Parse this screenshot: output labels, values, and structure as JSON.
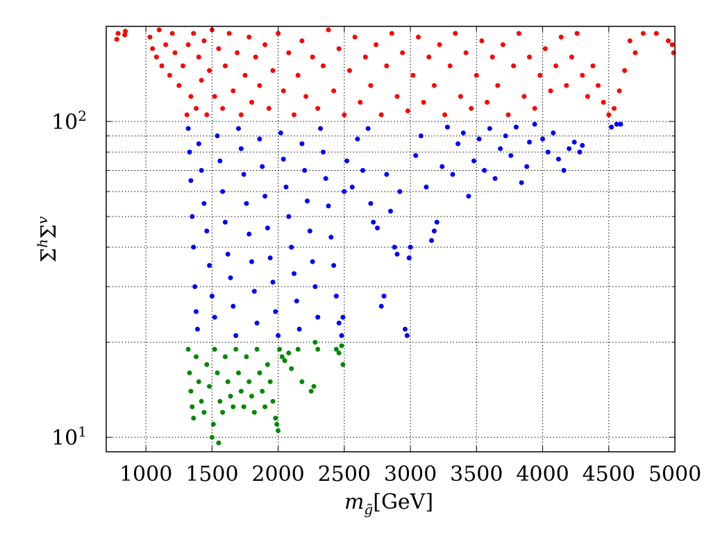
{
  "chart_data": {
    "type": "scatter",
    "xlabel": "m_g̃[GeV]",
    "ylabel": "Σ^h Σ^v",
    "xlim": [
      700,
      5000
    ],
    "ylim": [
      9,
      200
    ],
    "yscale": "log",
    "grid": true,
    "grid_style": "dotted",
    "x_ticks": [
      1000,
      1500,
      2000,
      2500,
      3000,
      3500,
      4000,
      4500,
      5000
    ],
    "x_tick_labels": [
      "1000",
      "1500",
      "2000",
      "2500",
      "3000",
      "3500",
      "4000",
      "4500",
      "5000"
    ],
    "y_major_ticks": [
      10,
      100
    ],
    "y_major_tick_labels": [
      "10",
      "10"
    ],
    "y_major_tick_exponents": [
      "1",
      "2"
    ],
    "y_minor_ticks": [
      20,
      30,
      40,
      50,
      60,
      70,
      80,
      90
    ],
    "series": [
      {
        "color": "#ff0000",
        "y_range": [
          100,
          200
        ],
        "points": [
          [
            780,
            182
          ],
          [
            790,
            190
          ],
          [
            840,
            188
          ],
          [
            845,
            193
          ],
          [
            1030,
            185
          ],
          [
            1050,
            170
          ],
          [
            1080,
            160
          ],
          [
            1100,
            195
          ],
          [
            1120,
            150
          ],
          [
            1150,
            175
          ],
          [
            1180,
            140
          ],
          [
            1200,
            190
          ],
          [
            1220,
            165
          ],
          [
            1250,
            130
          ],
          [
            1280,
            150
          ],
          [
            1310,
            105
          ],
          [
            1320,
            175
          ],
          [
            1340,
            120
          ],
          [
            1360,
            190
          ],
          [
            1380,
            110
          ],
          [
            1400,
            160
          ],
          [
            1420,
            135
          ],
          [
            1440,
            180
          ],
          [
            1460,
            105
          ],
          [
            1480,
            145
          ],
          [
            1500,
            195
          ],
          [
            1520,
            120
          ],
          [
            1550,
            170
          ],
          [
            1580,
            110
          ],
          [
            1600,
            150
          ],
          [
            1630,
            190
          ],
          [
            1660,
            125
          ],
          [
            1690,
            165
          ],
          [
            1720,
            105
          ],
          [
            1750,
            140
          ],
          [
            1780,
            185
          ],
          [
            1800,
            115
          ],
          [
            1830,
            160
          ],
          [
            1860,
            130
          ],
          [
            1900,
            175
          ],
          [
            1930,
            110
          ],
          [
            1960,
            145
          ],
          [
            2000,
            190
          ],
          [
            2040,
            125
          ],
          [
            2080,
            165
          ],
          [
            2120,
            105
          ],
          [
            2150,
            140
          ],
          [
            2180,
            180
          ],
          [
            2210,
            120
          ],
          [
            2260,
            160
          ],
          [
            2300,
            110
          ],
          [
            2340,
            150
          ],
          [
            2380,
            195
          ],
          [
            2420,
            125
          ],
          [
            2460,
            170
          ],
          [
            2500,
            105
          ],
          [
            2540,
            145
          ],
          [
            2580,
            185
          ],
          [
            2620,
            115
          ],
          [
            2660,
            160
          ],
          [
            2700,
            130
          ],
          [
            2740,
            175
          ],
          [
            2780,
            105
          ],
          [
            2820,
            150
          ],
          [
            2860,
            190
          ],
          [
            2900,
            120
          ],
          [
            2940,
            165
          ],
          [
            2980,
            108
          ],
          [
            3020,
            140
          ],
          [
            3060,
            185
          ],
          [
            3100,
            115
          ],
          [
            3140,
            160
          ],
          [
            3180,
            130
          ],
          [
            3220,
            175
          ],
          [
            3260,
            105
          ],
          [
            3300,
            150
          ],
          [
            3340,
            190
          ],
          [
            3380,
            120
          ],
          [
            3420,
            165
          ],
          [
            3460,
            110
          ],
          [
            3500,
            140
          ],
          [
            3540,
            180
          ],
          [
            3580,
            115
          ],
          [
            3620,
            160
          ],
          [
            3660,
            130
          ],
          [
            3700,
            175
          ],
          [
            3740,
            105
          ],
          [
            3780,
            150
          ],
          [
            3820,
            190
          ],
          [
            3860,
            120
          ],
          [
            3900,
            160
          ],
          [
            3940,
            110
          ],
          [
            3980,
            140
          ],
          [
            4020,
            170
          ],
          [
            4060,
            125
          ],
          [
            4100,
            150
          ],
          [
            4140,
            185
          ],
          [
            4180,
            130
          ],
          [
            4220,
            160
          ],
          [
            4260,
            190
          ],
          [
            4300,
            140
          ],
          [
            4340,
            120
          ],
          [
            4380,
            150
          ],
          [
            4420,
            130
          ],
          [
            4460,
            115
          ],
          [
            4500,
            105
          ],
          [
            4540,
            110
          ],
          [
            4580,
            125
          ],
          [
            4620,
            145
          ],
          [
            4660,
            180
          ],
          [
            4700,
            165
          ],
          [
            4760,
            190
          ],
          [
            4860,
            190
          ],
          [
            4950,
            180
          ],
          [
            4980,
            175
          ],
          [
            4990,
            165
          ]
        ]
      },
      {
        "color": "#0000ff",
        "y_range": [
          20,
          100
        ],
        "points": [
          [
            1320,
            95
          ],
          [
            1330,
            80
          ],
          [
            1340,
            65
          ],
          [
            1350,
            50
          ],
          [
            1360,
            40
          ],
          [
            1370,
            30
          ],
          [
            1380,
            25
          ],
          [
            1390,
            22
          ],
          [
            1400,
            85
          ],
          [
            1420,
            70
          ],
          [
            1440,
            55
          ],
          [
            1460,
            45
          ],
          [
            1480,
            35
          ],
          [
            1500,
            28
          ],
          [
            1520,
            24
          ],
          [
            1540,
            90
          ],
          [
            1560,
            75
          ],
          [
            1580,
            60
          ],
          [
            1600,
            48
          ],
          [
            1620,
            38
          ],
          [
            1640,
            32
          ],
          [
            1660,
            26
          ],
          [
            1680,
            21
          ],
          [
            1700,
            95
          ],
          [
            1720,
            82
          ],
          [
            1740,
            68
          ],
          [
            1760,
            55
          ],
          [
            1780,
            44
          ],
          [
            1800,
            36
          ],
          [
            1820,
            29
          ],
          [
            1840,
            23
          ],
          [
            1860,
            88
          ],
          [
            1880,
            72
          ],
          [
            1900,
            58
          ],
          [
            1920,
            46
          ],
          [
            1940,
            37
          ],
          [
            1960,
            31
          ],
          [
            1980,
            25
          ],
          [
            2000,
            21
          ],
          [
            2020,
            92
          ],
          [
            2040,
            76
          ],
          [
            2060,
            62
          ],
          [
            2080,
            50
          ],
          [
            2100,
            40
          ],
          [
            2120,
            33
          ],
          [
            2140,
            27
          ],
          [
            2160,
            22
          ],
          [
            2180,
            85
          ],
          [
            2200,
            70
          ],
          [
            2220,
            56
          ],
          [
            2240,
            45
          ],
          [
            2260,
            36
          ],
          [
            2280,
            30
          ],
          [
            2300,
            24
          ],
          [
            2320,
            95
          ],
          [
            2340,
            80
          ],
          [
            2360,
            66
          ],
          [
            2380,
            54
          ],
          [
            2400,
            43
          ],
          [
            2420,
            35
          ],
          [
            2440,
            28
          ],
          [
            2460,
            23
          ],
          [
            2480,
            21
          ],
          [
            2490,
            24
          ],
          [
            2500,
            60
          ],
          [
            2520,
            75
          ],
          [
            2560,
            62
          ],
          [
            2600,
            88
          ],
          [
            2640,
            70
          ],
          [
            2680,
            95
          ],
          [
            2700,
            55
          ],
          [
            2720,
            48
          ],
          [
            2750,
            46
          ],
          [
            2780,
            26
          ],
          [
            2800,
            28
          ],
          [
            2820,
            68
          ],
          [
            2850,
            52
          ],
          [
            2880,
            40
          ],
          [
            2900,
            38
          ],
          [
            2920,
            60
          ],
          [
            2960,
            22
          ],
          [
            2975,
            21
          ],
          [
            2990,
            37
          ],
          [
            3000,
            40
          ],
          [
            3040,
            78
          ],
          [
            3080,
            90
          ],
          [
            3120,
            62
          ],
          [
            3160,
            42
          ],
          [
            3180,
            45
          ],
          [
            3200,
            48
          ],
          [
            3240,
            72
          ],
          [
            3280,
            96
          ],
          [
            3320,
            68
          ],
          [
            3360,
            85
          ],
          [
            3400,
            92
          ],
          [
            3440,
            58
          ],
          [
            3480,
            75
          ],
          [
            3520,
            88
          ],
          [
            3560,
            70
          ],
          [
            3600,
            95
          ],
          [
            3640,
            66
          ],
          [
            3680,
            82
          ],
          [
            3720,
            90
          ],
          [
            3760,
            78
          ],
          [
            3800,
            96
          ],
          [
            3840,
            64
          ],
          [
            3880,
            72
          ],
          [
            3900,
            86
          ],
          [
            3940,
            98
          ],
          [
            4000,
            88
          ],
          [
            4040,
            80
          ],
          [
            4080,
            92
          ],
          [
            4120,
            76
          ],
          [
            4160,
            70
          ],
          [
            4200,
            82
          ],
          [
            4240,
            86
          ],
          [
            4280,
            80
          ],
          [
            4300,
            84
          ],
          [
            4520,
            96
          ],
          [
            4560,
            98
          ],
          [
            4590,
            98
          ]
        ]
      },
      {
        "color": "#008800",
        "y_range": [
          9.5,
          20
        ],
        "points": [
          [
            1320,
            19
          ],
          [
            1330,
            16
          ],
          [
            1340,
            14
          ],
          [
            1350,
            12.5
          ],
          [
            1360,
            11.5
          ],
          [
            1380,
            18
          ],
          [
            1400,
            15
          ],
          [
            1420,
            13
          ],
          [
            1440,
            12
          ],
          [
            1460,
            17
          ],
          [
            1480,
            14.5
          ],
          [
            1500,
            10
          ],
          [
            1510,
            11
          ],
          [
            1520,
            19
          ],
          [
            1540,
            16
          ],
          [
            1550,
            9.6
          ],
          [
            1560,
            13
          ],
          [
            1580,
            12
          ],
          [
            1600,
            18
          ],
          [
            1620,
            15
          ],
          [
            1640,
            13.5
          ],
          [
            1660,
            12.5
          ],
          [
            1680,
            19
          ],
          [
            1700,
            16
          ],
          [
            1720,
            14
          ],
          [
            1740,
            12.5
          ],
          [
            1760,
            18
          ],
          [
            1780,
            15
          ],
          [
            1800,
            13.5
          ],
          [
            1820,
            12
          ],
          [
            1840,
            19
          ],
          [
            1860,
            16
          ],
          [
            1880,
            14
          ],
          [
            1900,
            12.5
          ],
          [
            1920,
            17
          ],
          [
            1940,
            15
          ],
          [
            1960,
            13
          ],
          [
            1980,
            11.5
          ],
          [
            1990,
            11
          ],
          [
            2000,
            10.5
          ],
          [
            2010,
            19
          ],
          [
            2030,
            18
          ],
          [
            2050,
            17.5
          ],
          [
            2080,
            18.5
          ],
          [
            2100,
            16.5
          ],
          [
            2150,
            19
          ],
          [
            2180,
            15
          ],
          [
            2250,
            14
          ],
          [
            2270,
            14.5
          ],
          [
            2280,
            20
          ],
          [
            2300,
            19
          ],
          [
            2440,
            19
          ],
          [
            2460,
            18.5
          ],
          [
            2480,
            19.5
          ],
          [
            2490,
            17
          ]
        ]
      }
    ]
  }
}
